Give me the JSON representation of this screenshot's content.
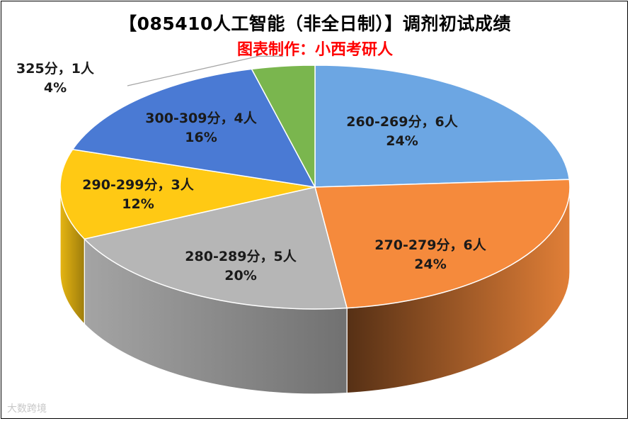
{
  "title": "【085410人工智能（非全日制）】调剂初试成绩",
  "subtitle": "图表制作：小西考研人",
  "watermark": "大数跨境",
  "chart_data": {
    "type": "pie",
    "title": "【085410人工智能（非全日制）】调剂初试成绩",
    "subtitle": "图表制作：小西考研人",
    "legend": "none",
    "style": "3d",
    "slices": [
      {
        "label": "260-269分，6人",
        "category": "260-269分",
        "count": 6,
        "percent": "24%",
        "value": 24,
        "color": "#6ca6e3"
      },
      {
        "label": "270-279分，6人",
        "category": "270-279分",
        "count": 6,
        "percent": "24%",
        "value": 24,
        "color": "#f58a3c"
      },
      {
        "label": "280-289分，5人",
        "category": "280-289分",
        "count": 5,
        "percent": "20%",
        "value": 20,
        "color": "#b6b6b6"
      },
      {
        "label": "290-299分，3人",
        "category": "290-299分",
        "count": 3,
        "percent": "12%",
        "value": 12,
        "color": "#ffc914"
      },
      {
        "label": "300-309分，4人",
        "category": "300-309分",
        "count": 4,
        "percent": "16%",
        "value": 16,
        "color": "#4a7ad4"
      },
      {
        "label": "325分，1人",
        "category": "325分",
        "count": 1,
        "percent": "4%",
        "value": 4,
        "color": "#7ab64e"
      }
    ]
  }
}
